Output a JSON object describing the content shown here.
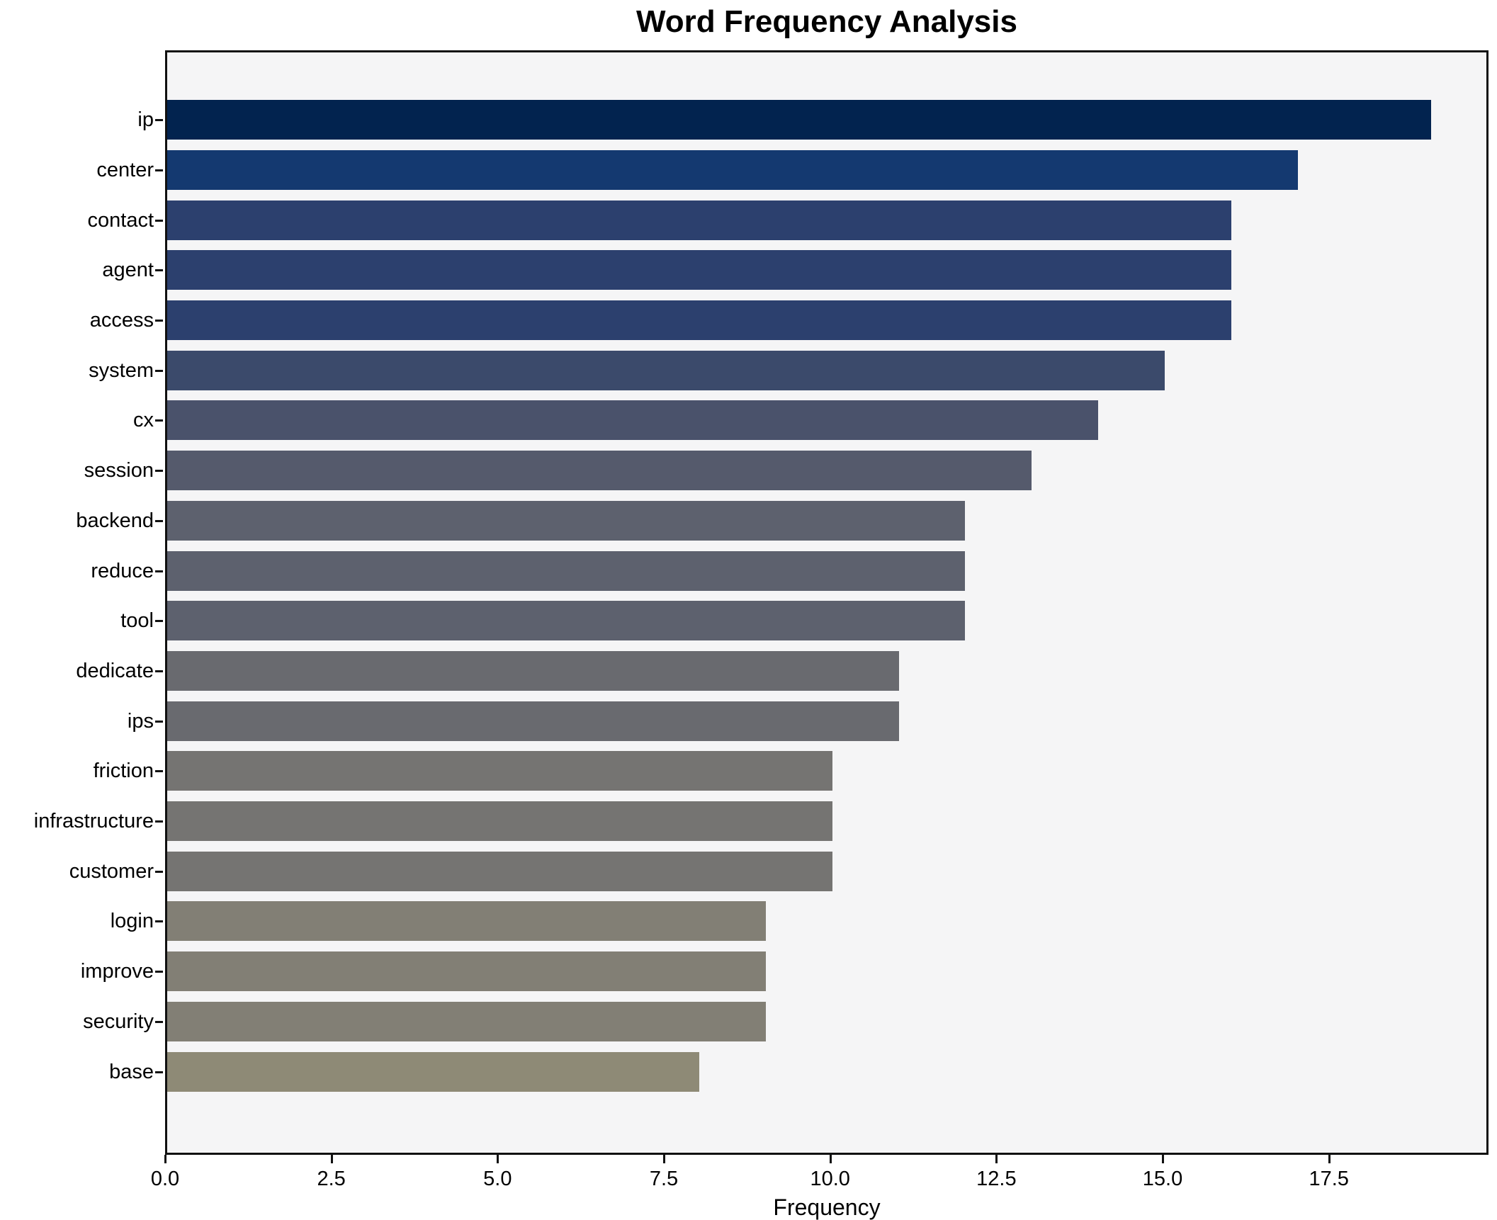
{
  "figure": {
    "title": "Word Frequency Analysis"
  },
  "chart_data": {
    "type": "bar",
    "orientation": "horizontal",
    "title": "Word Frequency Analysis",
    "xlabel": "Frequency",
    "ylabel": "",
    "xlim": [
      0,
      19.9
    ],
    "grid": false,
    "legend": null,
    "plot_background": "#f5f5f6",
    "x_tick_values": [
      0,
      2.5,
      5,
      7.5,
      10,
      12.5,
      15,
      17.5
    ],
    "x_tick_labels": [
      "0.0",
      "2.5",
      "5.0",
      "7.5",
      "10.0",
      "12.5",
      "15.0",
      "17.5"
    ],
    "categories": [
      "ip",
      "center",
      "contact",
      "agent",
      "access",
      "system",
      "cx",
      "session",
      "backend",
      "reduce",
      "tool",
      "dedicate",
      "ips",
      "friction",
      "infrastructure",
      "customer",
      "login",
      "improve",
      "security",
      "base"
    ],
    "values": [
      19,
      17,
      16,
      16,
      16,
      15,
      14,
      13,
      12,
      12,
      12,
      11,
      11,
      10,
      10,
      10,
      9,
      9,
      9,
      8
    ],
    "bar_colors": [
      "#02234f",
      "#143970",
      "#2c406e",
      "#2c406e",
      "#2c406e",
      "#3b4a6b",
      "#4a526b",
      "#555a6c",
      "#5d616e",
      "#5d616e",
      "#5d616e",
      "#696a6f",
      "#696a6f",
      "#757472",
      "#757472",
      "#757472",
      "#827f75",
      "#827f75",
      "#827f75",
      "#8e8a76"
    ]
  }
}
